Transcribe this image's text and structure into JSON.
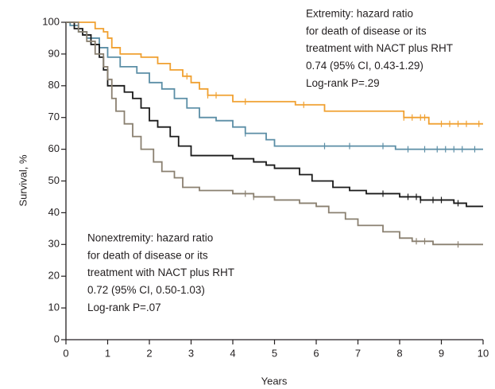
{
  "chart_data": {
    "type": "step",
    "xlabel": "Years",
    "ylabel": "Survival, %",
    "xlim": [
      0,
      10
    ],
    "xticks": [
      0,
      1,
      2,
      3,
      4,
      5,
      6,
      7,
      8,
      9,
      10
    ],
    "ylim": [
      0,
      100
    ],
    "yticks": [
      0,
      10,
      20,
      30,
      40,
      50,
      60,
      70,
      80,
      90,
      100
    ],
    "annotations": [
      {
        "lines": [
          "Extremity: hazard ratio",
          "for death of disease or its",
          "treatment with NACT plus RHT",
          "0.74 (95% CI, 0.43-1.29)",
          "Log-rank P=.29"
        ]
      },
      {
        "lines": [
          "Nonextremity: hazard ratio",
          "for death of disease or its",
          "treatment with NACT plus RHT",
          "0.72 (95% CI, 0.50-1.03)",
          "Log-rank P=.07"
        ]
      }
    ],
    "series": [
      {
        "color": "#f0a030",
        "x": [
          0,
          0.7,
          0.9,
          1.0,
          1.1,
          1.3,
          1.8,
          2.2,
          2.5,
          2.8,
          3.0,
          3.2,
          3.4,
          4.0,
          5.5,
          6.2,
          8.1,
          8.7,
          10
        ],
        "values": [
          100,
          98,
          97,
          95,
          92,
          90,
          89,
          87,
          85,
          83,
          81,
          79,
          77,
          75,
          74,
          72,
          70,
          68,
          68
        ],
        "censored": [
          2.9,
          3.4,
          3.6,
          4.3,
          5.7,
          8.1,
          8.3,
          8.5,
          8.6,
          9.0,
          9.2,
          9.4,
          9.6,
          9.9
        ]
      },
      {
        "color": "#5b8ea6",
        "x": [
          0,
          0.1,
          0.3,
          0.5,
          0.8,
          1.0,
          1.3,
          1.7,
          2.0,
          2.3,
          2.6,
          2.9,
          3.2,
          3.6,
          4.0,
          4.3,
          4.8,
          5.0,
          7.9,
          10
        ],
        "values": [
          100,
          99,
          97,
          95,
          92,
          89,
          86,
          84,
          81,
          79,
          76,
          73,
          70,
          69,
          67,
          65,
          63,
          61,
          60,
          60
        ],
        "censored": [
          4.3,
          6.2,
          6.8,
          7.6,
          8.2,
          8.6,
          8.9,
          9.1,
          9.3,
          9.5,
          9.8
        ]
      },
      {
        "color": "#1a1a1a",
        "x": [
          0,
          0.2,
          0.4,
          0.6,
          0.8,
          0.9,
          1.0,
          1.4,
          1.6,
          1.8,
          2.0,
          2.2,
          2.5,
          2.7,
          3.0,
          4.0,
          4.5,
          4.8,
          5.0,
          5.6,
          5.9,
          6.4,
          6.8,
          7.2,
          8.0,
          8.5,
          9.3,
          9.6,
          10
        ],
        "values": [
          100,
          98,
          96,
          93,
          89,
          85,
          80,
          78,
          76,
          73,
          69,
          67,
          64,
          61,
          58,
          57,
          56,
          55,
          54,
          52,
          50,
          48,
          47,
          46,
          45,
          44,
          43,
          42,
          42
        ],
        "censored": [
          7.6,
          8.2,
          8.4,
          8.5,
          8.8,
          9.0,
          9.4
        ]
      },
      {
        "color": "#8a8070",
        "x": [
          0,
          0.3,
          0.5,
          0.7,
          0.9,
          1.0,
          1.1,
          1.2,
          1.4,
          1.6,
          1.8,
          2.1,
          2.3,
          2.6,
          2.8,
          3.2,
          4.0,
          4.5,
          5.0,
          5.6,
          6.0,
          6.3,
          6.7,
          7.0,
          7.6,
          8.0,
          8.3,
          8.8,
          10
        ],
        "values": [
          100,
          97,
          94,
          90,
          86,
          82,
          76,
          72,
          68,
          64,
          60,
          56,
          53,
          51,
          48,
          47,
          46,
          45,
          44,
          43,
          42,
          40,
          38,
          36,
          34,
          32,
          31,
          30,
          30
        ],
        "censored": [
          4.3,
          4.5,
          8.4,
          8.6,
          9.4
        ]
      }
    ]
  }
}
